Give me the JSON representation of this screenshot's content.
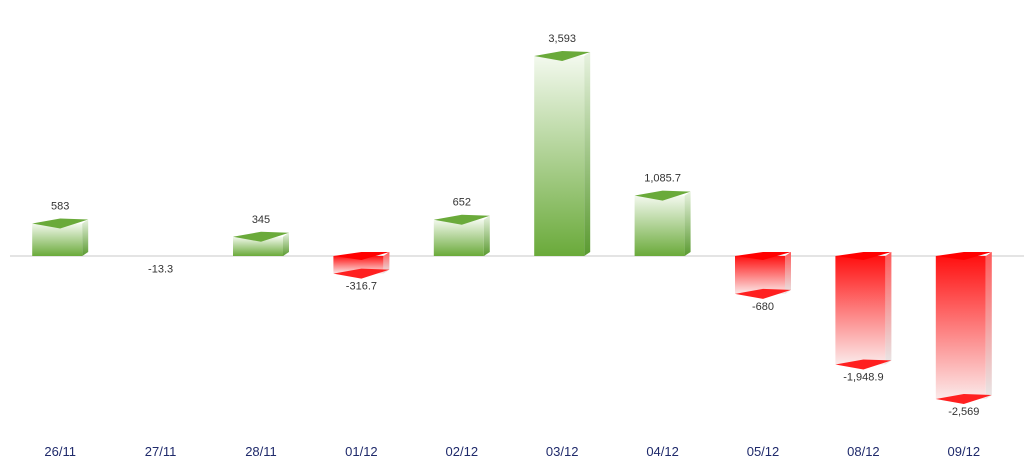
{
  "chart_data": {
    "type": "bar",
    "style": "3d-column",
    "categories": [
      "26/11",
      "27/11",
      "28/11",
      "01/12",
      "02/12",
      "03/12",
      "04/12",
      "05/12",
      "08/12",
      "09/12"
    ],
    "values": [
      583,
      -13.3,
      345,
      -316.7,
      652,
      3593,
      1085.7,
      -680,
      -1948.9,
      -2569
    ],
    "value_labels": [
      "583",
      "-13.3",
      "345",
      "-316.7",
      "652",
      "3,593",
      "1,085.7",
      "-680",
      "-1,948.9",
      "-2,569"
    ],
    "ylim": [
      -2700,
      3800
    ],
    "grid": false,
    "legend": "none",
    "colors": {
      "positive": "#6aaa3a",
      "positive_light": "#f1f8ec",
      "negative": "#ff0000",
      "negative_light": "#f2f2f2",
      "baseline": "#c8c8c8",
      "category_text": "#1f2a6b",
      "value_text": "#333333"
    }
  }
}
